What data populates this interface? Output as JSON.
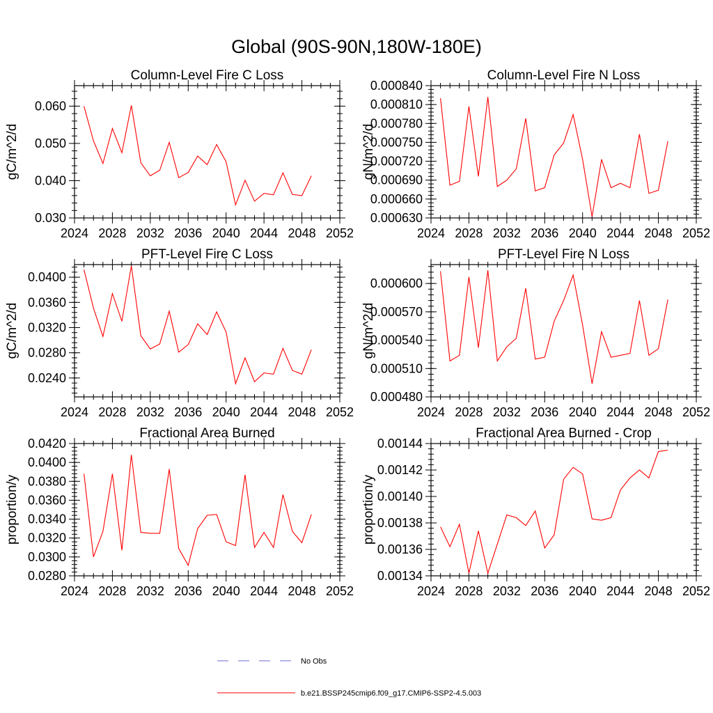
{
  "figure_title": "Global (90S-90N,180W-180E)",
  "legend": {
    "entries": [
      {
        "label": "No Obs",
        "style": "dashed",
        "color": "#6b6bcf"
      },
      {
        "label": "b.e21.BSSP245cmip6.f09_g17.CMIP6-SSP2-4.5.003",
        "style": "solid",
        "color": "#ff0000"
      }
    ]
  },
  "series_color": "#ff0000",
  "chart_data": [
    {
      "type": "line",
      "title": "Column-Level Fire C Loss",
      "ylabel": "gC/m^2/d",
      "xlim": [
        2024,
        2052
      ],
      "x_ticks": [
        2024,
        2028,
        2032,
        2036,
        2040,
        2044,
        2048,
        2052
      ],
      "ylim": [
        0.03,
        0.0655
      ],
      "y_ticks": [
        0.03,
        0.04,
        0.05,
        0.06
      ],
      "y_tick_labels": [
        "0.030",
        "0.040",
        "0.050",
        "0.060"
      ],
      "x": [
        2025,
        2026,
        2027,
        2028,
        2029,
        2030,
        2031,
        2032,
        2033,
        2034,
        2035,
        2036,
        2037,
        2038,
        2039,
        2040,
        2041,
        2042,
        2043,
        2044,
        2045,
        2046,
        2047,
        2048,
        2049
      ],
      "values": [
        0.06,
        0.0507,
        0.0446,
        0.054,
        0.0475,
        0.0602,
        0.0448,
        0.0413,
        0.0428,
        0.0503,
        0.0408,
        0.0422,
        0.0466,
        0.0443,
        0.0497,
        0.0451,
        0.0335,
        0.0401,
        0.0345,
        0.0366,
        0.0362,
        0.0421,
        0.0363,
        0.036,
        0.0413
      ]
    },
    {
      "type": "line",
      "title": "Column-Level Fire N Loss",
      "ylabel": "gN/m^2/d",
      "xlim": [
        2024,
        2052
      ],
      "x_ticks": [
        2024,
        2028,
        2032,
        2036,
        2040,
        2044,
        2048,
        2052
      ],
      "ylim": [
        0.00063,
        0.00084
      ],
      "y_ticks": [
        0.00063,
        0.00066,
        0.00069,
        0.00072,
        0.00075,
        0.00078,
        0.00081,
        0.00084
      ],
      "y_tick_labels": [
        "0.000630",
        "0.000660",
        "0.000690",
        "0.000720",
        "0.000750",
        "0.000780",
        "0.000810",
        "0.000840"
      ],
      "x": [
        2025,
        2026,
        2027,
        2028,
        2029,
        2030,
        2031,
        2032,
        2033,
        2034,
        2035,
        2036,
        2037,
        2038,
        2039,
        2040,
        2041,
        2042,
        2043,
        2044,
        2045,
        2046,
        2047,
        2048,
        2049
      ],
      "values": [
        0.00082,
        0.000682,
        0.000688,
        0.000807,
        0.000696,
        0.000822,
        0.00068,
        0.00069,
        0.000708,
        0.000788,
        0.000673,
        0.000678,
        0.00073,
        0.000749,
        0.000794,
        0.000723,
        0.000632,
        0.000723,
        0.000678,
        0.000685,
        0.000678,
        0.000763,
        0.000669,
        0.000674,
        0.000752
      ]
    },
    {
      "type": "line",
      "title": "PFT-Level Fire C Loss",
      "ylabel": "gC/m^2/d",
      "xlim": [
        2024,
        2052
      ],
      "x_ticks": [
        2024,
        2028,
        2032,
        2036,
        2040,
        2044,
        2048,
        2052
      ],
      "ylim": [
        0.021,
        0.042
      ],
      "y_ticks": [
        0.024,
        0.028,
        0.032,
        0.036,
        0.04
      ],
      "y_tick_labels": [
        "0.0240",
        "0.0280",
        "0.0320",
        "0.0360",
        "0.0400"
      ],
      "x": [
        2025,
        2026,
        2027,
        2028,
        2029,
        2030,
        2031,
        2032,
        2033,
        2034,
        2035,
        2036,
        2037,
        2038,
        2039,
        2040,
        2041,
        2042,
        2043,
        2044,
        2045,
        2046,
        2047,
        2048,
        2049
      ],
      "values": [
        0.0412,
        0.0351,
        0.0306,
        0.0374,
        0.033,
        0.0418,
        0.0307,
        0.0286,
        0.0294,
        0.0346,
        0.0281,
        0.0293,
        0.0326,
        0.0309,
        0.0345,
        0.0313,
        0.0231,
        0.0272,
        0.0234,
        0.0248,
        0.0246,
        0.0287,
        0.0252,
        0.0246,
        0.0285
      ]
    },
    {
      "type": "line",
      "title": "PFT-Level Fire N Loss",
      "ylabel": "gN/m^2/d",
      "xlim": [
        2024,
        2052
      ],
      "x_ticks": [
        2024,
        2028,
        2032,
        2036,
        2040,
        2044,
        2048,
        2052
      ],
      "ylim": [
        0.00048,
        0.00062
      ],
      "y_ticks": [
        0.00048,
        0.00051,
        0.00054,
        0.00057,
        0.0006
      ],
      "y_tick_labels": [
        "0.000480",
        "0.000510",
        "0.000540",
        "0.000570",
        "0.000600"
      ],
      "x": [
        2025,
        2026,
        2027,
        2028,
        2029,
        2030,
        2031,
        2032,
        2033,
        2034,
        2035,
        2036,
        2037,
        2038,
        2039,
        2040,
        2041,
        2042,
        2043,
        2044,
        2045,
        2046,
        2047,
        2048,
        2049
      ],
      "values": [
        0.000613,
        0.000518,
        0.000524,
        0.000607,
        0.000532,
        0.000614,
        0.000518,
        0.000533,
        0.000542,
        0.000595,
        0.00052,
        0.000522,
        0.00056,
        0.000582,
        0.000609,
        0.000556,
        0.000494,
        0.000549,
        0.000522,
        0.000524,
        0.000526,
        0.000582,
        0.000524,
        0.000531,
        0.000583
      ]
    },
    {
      "type": "line",
      "title": "Fractional Area Burned",
      "ylabel": "proportion/y",
      "xlim": [
        2024,
        2052
      ],
      "x_ticks": [
        2024,
        2028,
        2032,
        2036,
        2040,
        2044,
        2048,
        2052
      ],
      "ylim": [
        0.028,
        0.042
      ],
      "y_ticks": [
        0.028,
        0.03,
        0.032,
        0.034,
        0.036,
        0.038,
        0.04,
        0.042
      ],
      "y_tick_labels": [
        "0.0280",
        "0.0300",
        "0.0320",
        "0.0340",
        "0.0360",
        "0.0380",
        "0.0400",
        "0.0420"
      ],
      "x": [
        2025,
        2026,
        2027,
        2028,
        2029,
        2030,
        2031,
        2032,
        2033,
        2034,
        2035,
        2036,
        2037,
        2038,
        2039,
        2040,
        2041,
        2042,
        2043,
        2044,
        2045,
        2046,
        2047,
        2048,
        2049
      ],
      "values": [
        0.0388,
        0.03,
        0.0327,
        0.0388,
        0.0307,
        0.0408,
        0.0326,
        0.0325,
        0.0325,
        0.0393,
        0.0309,
        0.0291,
        0.033,
        0.0344,
        0.0345,
        0.0316,
        0.0312,
        0.0387,
        0.031,
        0.0326,
        0.031,
        0.0366,
        0.0327,
        0.0315,
        0.0345
      ]
    },
    {
      "type": "line",
      "title": "Fractional Area Burned - Crop",
      "ylabel": "proportion/y",
      "xlim": [
        2024,
        2052
      ],
      "x_ticks": [
        2024,
        2028,
        2032,
        2036,
        2040,
        2044,
        2048,
        2052
      ],
      "ylim": [
        0.00134,
        0.00144
      ],
      "y_ticks": [
        0.00134,
        0.00136,
        0.00138,
        0.0014,
        0.00142,
        0.00144
      ],
      "y_tick_labels": [
        "0.00134",
        "0.00136",
        "0.00138",
        "0.00140",
        "0.00142",
        "0.00144"
      ],
      "x": [
        2025,
        2026,
        2027,
        2028,
        2029,
        2030,
        2031,
        2032,
        2033,
        2034,
        2035,
        2036,
        2037,
        2038,
        2039,
        2040,
        2041,
        2042,
        2043,
        2044,
        2045,
        2046,
        2047,
        2048,
        2049
      ],
      "values": [
        0.001377,
        0.001362,
        0.001379,
        0.001342,
        0.001374,
        0.001342,
        0.001364,
        0.001386,
        0.001384,
        0.001378,
        0.001389,
        0.001361,
        0.001371,
        0.001413,
        0.001422,
        0.001417,
        0.001383,
        0.001382,
        0.001384,
        0.001405,
        0.001414,
        0.00142,
        0.001414,
        0.001434,
        0.001435
      ]
    }
  ]
}
